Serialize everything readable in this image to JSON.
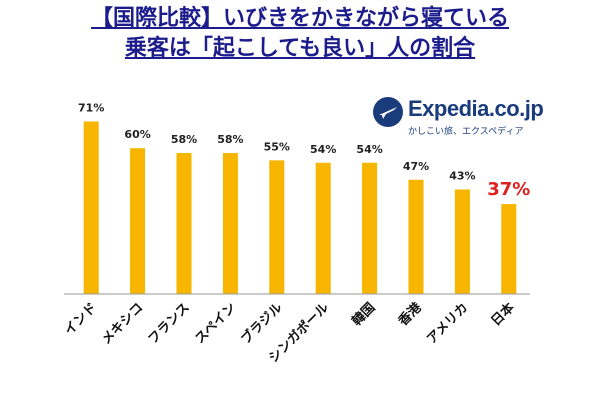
{
  "title": {
    "line1": "【国際比較】いびきをかきながら寝ている",
    "line2": "乗客は「起こしても良い」人の割合"
  },
  "logo": {
    "brand": "Expedia.co.jp",
    "tagline": "かしこい旅、エクスペディア"
  },
  "chart_data": {
    "type": "bar",
    "categories": [
      "インド",
      "メキシコ",
      "フランス",
      "スペイン",
      "ブラジル",
      "シンガポール",
      "韓国",
      "香港",
      "アメリカ",
      "日本"
    ],
    "values": [
      71,
      60,
      58,
      58,
      55,
      54,
      54,
      47,
      43,
      37
    ],
    "value_labels": [
      "71%",
      "60%",
      "58%",
      "58%",
      "55%",
      "54%",
      "54%",
      "47%",
      "43%",
      "37%"
    ],
    "ylim": [
      0,
      80
    ],
    "grid": false,
    "bar_color": "#f7b500",
    "highlight_index": 9,
    "highlight_label_color": "#e02020"
  }
}
